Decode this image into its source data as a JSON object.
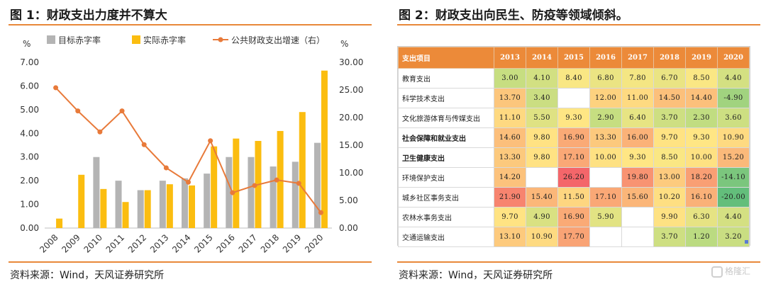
{
  "left": {
    "title": "图 1：财政支出力度并不算大",
    "source": "资料来源：Wind，天风证券研究所"
  },
  "right": {
    "title": "图 2：财政支出向民生、防疫等领域倾斜。",
    "source": "资料来源：Wind，天风证券研究所"
  },
  "watermark": "格隆汇",
  "colors": {
    "accent_rule": "#e8883a",
    "target_bar": "#b4b4b4",
    "actual_bar": "#fbbd10",
    "growth_line": "#e87a3a",
    "table_header": "#ec8a39"
  },
  "chart_data": [
    {
      "type": "bar+line",
      "categories": [
        "2008",
        "2009",
        "2010",
        "2011",
        "2012",
        "2013",
        "2014",
        "2015",
        "2016",
        "2017",
        "2018",
        "2019",
        "2020"
      ],
      "left_unit": "%",
      "right_unit": "%",
      "left_ticks": [
        "0.00",
        "1.00",
        "2.00",
        "3.00",
        "4.00",
        "5.00",
        "6.00",
        "7.00"
      ],
      "right_ticks": [
        "0.00",
        "5.00",
        "10.00",
        "15.00",
        "20.00",
        "25.00",
        "30.00"
      ],
      "ylim_left": [
        0,
        7
      ],
      "ylim_right": [
        0,
        30
      ],
      "legend_position": "top",
      "series": [
        {
          "name": "目标赤字率",
          "kind": "bar",
          "axis": "left",
          "values": [
            null,
            null,
            3.0,
            2.0,
            1.6,
            2.0,
            2.1,
            2.3,
            3.0,
            3.0,
            2.6,
            2.8,
            3.6
          ]
        },
        {
          "name": "实际赤字率",
          "kind": "bar",
          "axis": "left",
          "values": [
            0.4,
            2.25,
            1.65,
            1.1,
            1.6,
            1.85,
            1.8,
            3.45,
            3.78,
            3.68,
            4.1,
            4.9,
            6.65
          ]
        },
        {
          "name": "公共财政支出增速（右）",
          "kind": "line",
          "axis": "right",
          "values": [
            25.4,
            21.2,
            17.4,
            21.2,
            15.1,
            10.9,
            8.3,
            15.8,
            6.4,
            7.7,
            8.7,
            8.1,
            2.8
          ]
        }
      ]
    },
    {
      "type": "heatmap",
      "row_header": "支出项目",
      "columns": [
        "2013",
        "2014",
        "2015",
        "2016",
        "2017",
        "2018",
        "2019",
        "2020"
      ],
      "rows": [
        {
          "label": "教育支出",
          "bold": false,
          "values": [
            "3.00",
            "4.10",
            "8.40",
            "6.80",
            "7.80",
            "6.70",
            "8.50",
            "4.40"
          ]
        },
        {
          "label": "科学技术支出",
          "bold": false,
          "values": [
            "13.70",
            "3.40",
            "",
            "12.00",
            "11.00",
            "14.50",
            "14.40",
            "-4.90"
          ]
        },
        {
          "label": "文化旅游体育与传媒支出",
          "bold": false,
          "values": [
            "11.10",
            "5.50",
            "9.30",
            "2.90",
            "6.40",
            "3.70",
            "2.30",
            "3.60"
          ]
        },
        {
          "label": "社会保障和就业支出",
          "bold": true,
          "values": [
            "14.60",
            "9.80",
            "16.90",
            "13.30",
            "16.00",
            "9.70",
            "9.30",
            "10.90"
          ]
        },
        {
          "label": "卫生健康支出",
          "bold": true,
          "values": [
            "13.30",
            "9.80",
            "17.10",
            "10.00",
            "9.30",
            "8.50",
            "10.00",
            "15.20"
          ]
        },
        {
          "label": "环境保护支出",
          "bold": false,
          "values": [
            "14.20",
            "",
            "26.20",
            "",
            "19.80",
            "13.00",
            "18.20",
            "-14.10"
          ]
        },
        {
          "label": "城乡社区事务支出",
          "bold": false,
          "values": [
            "21.90",
            "15.40",
            "11.50",
            "17.10",
            "15.60",
            "10.20",
            "16.10",
            "-20.00"
          ]
        },
        {
          "label": "农林水事务支出",
          "bold": false,
          "values": [
            "9.70",
            "4.90",
            "16.90",
            "5.90",
            "",
            "9.90",
            "6.30",
            "4.40"
          ]
        },
        {
          "label": "交通运输支出",
          "bold": false,
          "values": [
            "13.10",
            "10.90",
            "17.70",
            "",
            "",
            "3.70",
            "1.20",
            "3.20"
          ]
        }
      ]
    }
  ]
}
